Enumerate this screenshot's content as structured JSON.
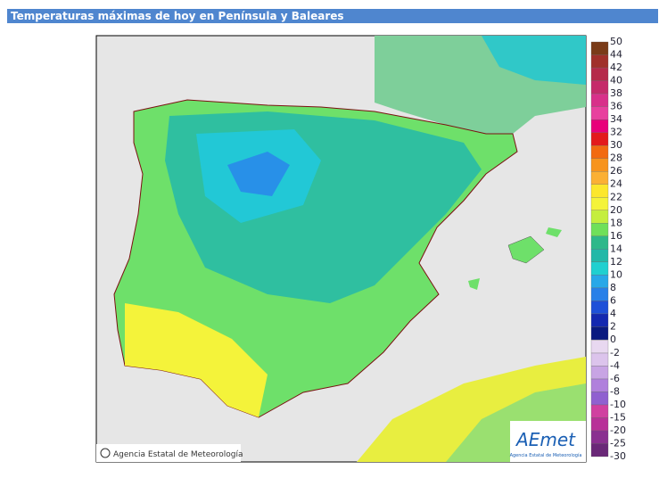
{
  "header": {
    "title": "Temperaturas máximas de hoy en Península y Baleares"
  },
  "legend": {
    "labels": [
      50,
      44,
      42,
      40,
      38,
      36,
      34,
      32,
      30,
      28,
      26,
      24,
      22,
      20,
      18,
      16,
      14,
      12,
      10,
      8,
      6,
      4,
      2,
      0,
      -2,
      -4,
      -6,
      -8,
      -10,
      -15,
      -20,
      -25,
      -30
    ],
    "colors": [
      "#7a3b18",
      "#a0302a",
      "#b52a4a",
      "#c52a6a",
      "#d8308a",
      "#e8409e",
      "#e8007a",
      "#e31a1c",
      "#f26a10",
      "#f7941d",
      "#fbb034",
      "#fce72c",
      "#f4f33a",
      "#c5ee3e",
      "#6fe05a",
      "#2eb88a",
      "#22b8a8",
      "#20d0d0",
      "#28a8e8",
      "#2880e8",
      "#1e50d8",
      "#1428b0",
      "#0a1a80",
      "#e8d8f0",
      "#dcc4ec",
      "#c8a4e4",
      "#b080dc",
      "#9060d0",
      "#d040a0",
      "#b83098",
      "#8a3090",
      "#6a2878"
    ]
  },
  "credit": "Agencia Estatal de Meteorología",
  "logo": {
    "name": "AEmet",
    "subtitle": "Agencia Estatal de Meteorología"
  }
}
